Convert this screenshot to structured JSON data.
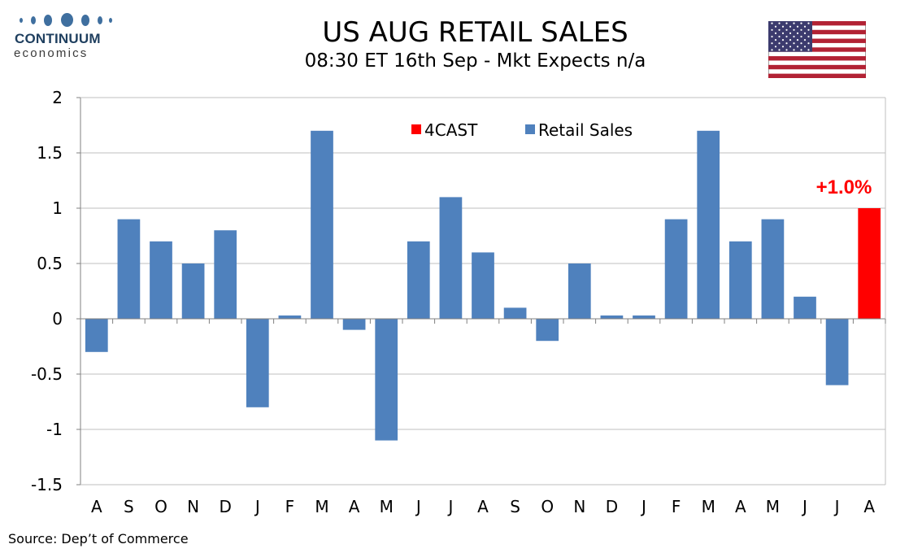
{
  "logo": {
    "brand": "CONTINUUM",
    "sub": "economics"
  },
  "title": "US AUG RETAIL SALES",
  "subtitle": "08:30 ET 16th Sep - Mkt Expects n/a",
  "source": "Source: Dep’t of Commerce",
  "flag_icon": "us-flag-icon",
  "colors": {
    "series": "#4f81bd",
    "forecast": "#ff0000",
    "grid": "#bfbfbf",
    "axis": "#808080"
  },
  "chart_data": {
    "type": "bar",
    "categories": [
      "A",
      "S",
      "O",
      "N",
      "D",
      "J",
      "F",
      "M",
      "A",
      "M",
      "J",
      "J",
      "A",
      "S",
      "O",
      "N",
      "D",
      "J",
      "F",
      "M",
      "A",
      "M",
      "J",
      "J",
      "A"
    ],
    "series": [
      {
        "name": "Retail Sales",
        "values": [
          -0.3,
          0.9,
          0.7,
          0.5,
          0.8,
          -0.8,
          0.03,
          1.7,
          -0.1,
          -1.1,
          0.7,
          1.1,
          0.6,
          0.1,
          -0.2,
          0.5,
          0.03,
          0.03,
          0.9,
          1.7,
          0.7,
          0.9,
          0.2,
          -0.6,
          null
        ]
      },
      {
        "name": "4CAST",
        "values": [
          null,
          null,
          null,
          null,
          null,
          null,
          null,
          null,
          null,
          null,
          null,
          null,
          null,
          null,
          null,
          null,
          null,
          null,
          null,
          null,
          null,
          null,
          null,
          null,
          1.0
        ]
      }
    ],
    "ylim": [
      -1.5,
      2
    ],
    "yticks": [
      2,
      1.5,
      1,
      0.5,
      0,
      -0.5,
      -1,
      -1.5
    ],
    "ytick_labels": [
      "2",
      "1.5",
      "1",
      "0.5",
      "0",
      "-0.5",
      "-1",
      "-1.5"
    ],
    "annotation": "+1.0%",
    "legend_position": "top-center",
    "grid": true
  }
}
